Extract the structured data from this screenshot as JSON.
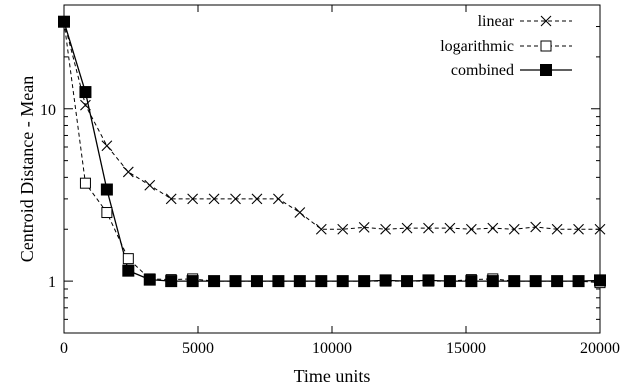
{
  "chart_data": {
    "type": "line",
    "xlabel": "Time units",
    "ylabel": "Centroid Distance - Mean",
    "y_scale": "log",
    "xlim": [
      0,
      20000
    ],
    "ylim": [
      0.5,
      40
    ],
    "x_ticks": [
      0,
      5000,
      10000,
      15000,
      20000
    ],
    "x_tick_labels": [
      "0",
      "5000",
      "10000",
      "15000",
      "20000"
    ],
    "y_ticks": [
      1,
      10
    ],
    "y_tick_labels": [
      "1",
      "10"
    ],
    "grid": false,
    "legend_position": "top-right",
    "series": [
      {
        "name": "linear",
        "marker": "cross",
        "line_style": "dashed",
        "color": "#000000",
        "x": [
          0,
          800,
          1600,
          2400,
          3200,
          4000,
          4800,
          5600,
          6400,
          7200,
          8000,
          8800,
          9600,
          10400,
          11200,
          12000,
          12800,
          13600,
          14400,
          15200,
          16000,
          16800,
          17600,
          18400,
          19200,
          20000
        ],
        "y": [
          32,
          10.5,
          6.1,
          4.3,
          3.6,
          3.0,
          3.0,
          3.0,
          3.0,
          3.0,
          3.0,
          2.5,
          2.0,
          2.0,
          2.05,
          2.0,
          2.03,
          2.03,
          2.03,
          2.0,
          2.03,
          2.0,
          2.06,
          2.0,
          2.0,
          2.0
        ]
      },
      {
        "name": "logarithmic",
        "marker": "open-square",
        "line_style": "dashed",
        "color": "#000000",
        "x": [
          0,
          800,
          1600,
          2400,
          3200,
          4000,
          4800,
          5600,
          6400,
          7200,
          8000,
          8800,
          9600,
          10400,
          11200,
          12000,
          12800,
          13600,
          14400,
          15200,
          16000,
          16800,
          17600,
          18400,
          19200,
          20000
        ],
        "y": [
          32,
          3.7,
          2.5,
          1.35,
          1.03,
          1.02,
          1.03,
          1.0,
          1.0,
          1.0,
          1.0,
          1.0,
          1.0,
          1.0,
          1.0,
          1.0,
          1.0,
          1.0,
          1.0,
          1.02,
          1.03,
          1.0,
          1.0,
          1.0,
          1.0,
          0.98
        ]
      },
      {
        "name": "combined",
        "marker": "filled-square",
        "line_style": "solid",
        "color": "#000000",
        "x": [
          0,
          800,
          1600,
          2400,
          3200,
          4000,
          4800,
          5600,
          6400,
          7200,
          8000,
          8800,
          9600,
          10400,
          11200,
          12000,
          12800,
          13600,
          14400,
          15200,
          16000,
          16800,
          17600,
          18400,
          19200,
          20000
        ],
        "y": [
          32,
          12.5,
          3.4,
          1.15,
          1.02,
          1.0,
          1.0,
          1.0,
          1.0,
          1.0,
          1.0,
          1.0,
          1.0,
          1.0,
          1.0,
          1.01,
          1.0,
          1.01,
          1.0,
          1.0,
          1.0,
          1.0,
          1.0,
          1.0,
          1.0,
          1.01
        ]
      }
    ]
  }
}
